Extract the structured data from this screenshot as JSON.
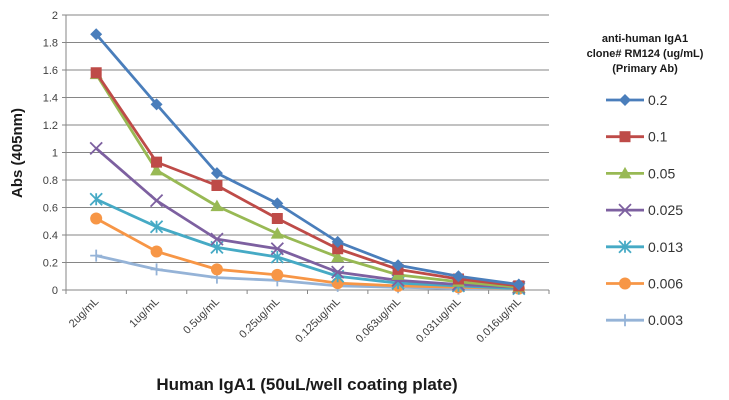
{
  "chart_data": {
    "type": "line",
    "title": "",
    "xlabel": "Human IgA1 (50uL/well coating plate)",
    "ylabel": "Abs (405nm)",
    "ylim": [
      0,
      2
    ],
    "yticks": [
      "0",
      "0.2",
      "0.4",
      "0.6",
      "0.8",
      "1",
      "1.2",
      "1.4",
      "1.6",
      "1.8",
      "2"
    ],
    "grid": true,
    "legend_position": "right",
    "legend_title": [
      "anti-human IgA1",
      "clone# RM124 (ug/mL)",
      "(Primary Ab)"
    ],
    "categories": [
      "2ug/mL",
      "1ug/mL",
      "0.5ug/mL",
      "0.25ug/mL",
      "0.125ug/mL",
      "0.063ug/mL",
      "0.031ug/mL",
      "0.016ug/mL"
    ],
    "series": [
      {
        "name": "0.2",
        "marker": "diamond",
        "color": "#4A7EBB",
        "values": [
          1.86,
          1.35,
          0.85,
          0.63,
          0.35,
          0.18,
          0.1,
          0.04
        ]
      },
      {
        "name": "0.1",
        "marker": "square",
        "color": "#BE4B48",
        "values": [
          1.58,
          0.93,
          0.76,
          0.52,
          0.3,
          0.15,
          0.08,
          0.03
        ]
      },
      {
        "name": "0.05",
        "marker": "triangle",
        "color": "#98B954",
        "values": [
          1.57,
          0.87,
          0.61,
          0.41,
          0.24,
          0.11,
          0.06,
          0.02
        ]
      },
      {
        "name": "0.025",
        "marker": "x",
        "color": "#7D60A0",
        "values": [
          1.03,
          0.65,
          0.37,
          0.3,
          0.13,
          0.07,
          0.04,
          0.02
        ]
      },
      {
        "name": "0.013",
        "marker": "star",
        "color": "#46AAC5",
        "values": [
          0.66,
          0.46,
          0.31,
          0.24,
          0.1,
          0.05,
          0.03,
          0.01
        ]
      },
      {
        "name": "0.006",
        "marker": "circle",
        "color": "#F79646",
        "values": [
          0.52,
          0.28,
          0.15,
          0.11,
          0.05,
          0.03,
          0.02,
          0.01
        ]
      },
      {
        "name": "0.003",
        "marker": "plus",
        "color": "#95B3D7",
        "values": [
          0.25,
          0.15,
          0.09,
          0.07,
          0.03,
          0.02,
          0.01,
          0.01
        ]
      }
    ]
  }
}
